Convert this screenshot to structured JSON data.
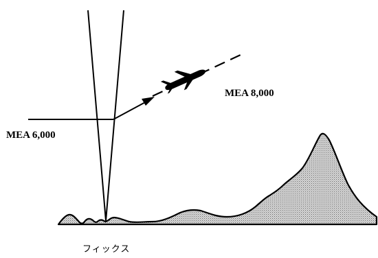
{
  "labels": {
    "mea_high": "MEA 8,000",
    "mea_low": "MEA 6,000",
    "fix": "フィックス"
  },
  "colors": {
    "line": "#000000",
    "terrain_fill": "#b8b8b8",
    "background": "#ffffff"
  },
  "icons": {
    "aircraft": "airplane-icon",
    "direction": "arrowhead-icon"
  }
}
